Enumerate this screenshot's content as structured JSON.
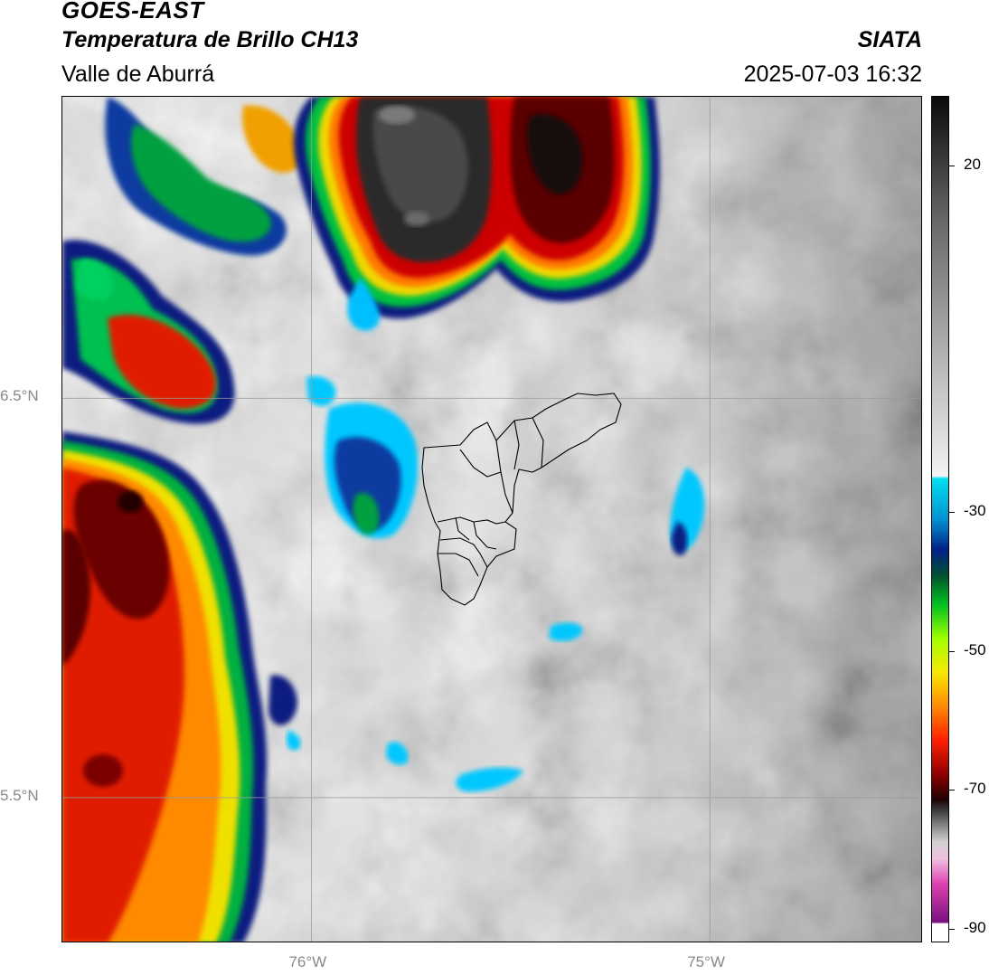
{
  "header": {
    "satellite": "GOES-EAST",
    "product": "Temperatura de Brillo CH13",
    "region": "Valle de Aburrá",
    "brand": "SIATA",
    "datetime": "2025-07-03 16:32"
  },
  "map": {
    "lat_ticks": [
      {
        "label": "6.5°N",
        "value": 6.5
      },
      {
        "label": "5.5°N",
        "value": 5.5
      }
    ],
    "lon_ticks": [
      {
        "label": "76°W",
        "value": -76
      },
      {
        "label": "75°W",
        "value": -75
      }
    ],
    "extent": {
      "lon_min": -76.625,
      "lon_max": -74.465,
      "lat_min": 5.135,
      "lat_max": 7.255
    }
  },
  "colorbar": {
    "units_range": [
      -92,
      30
    ],
    "ticks": [
      {
        "label": "20",
        "value": 20
      },
      {
        "label": "-30",
        "value": -30
      },
      {
        "label": "-50",
        "value": -50
      },
      {
        "label": "-70",
        "value": -70
      },
      {
        "label": "-90",
        "value": -90
      }
    ]
  }
}
